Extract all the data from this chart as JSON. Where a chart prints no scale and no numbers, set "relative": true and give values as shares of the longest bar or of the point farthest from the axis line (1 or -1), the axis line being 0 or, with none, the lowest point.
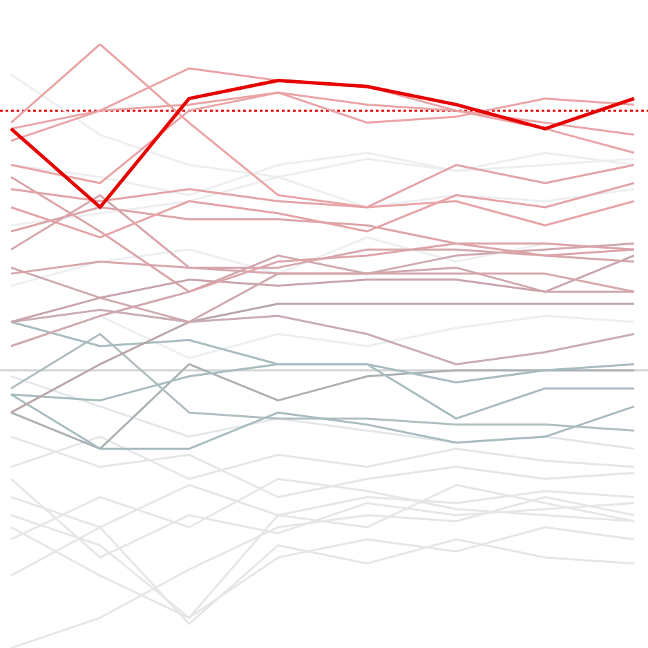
{
  "chart_data": {
    "type": "line",
    "relative": true,
    "categories": [
      null,
      null,
      null,
      null,
      null,
      null,
      null,
      null
    ],
    "marker": "none",
    "series": [
      {
        "color": "#e60000",
        "values": [
          0.86,
          0.73,
          0.91,
          0.94,
          0.93,
          0.9,
          0.86,
          0.91
        ]
      },
      {
        "color": "#eaa3a5",
        "values": [
          0.87,
          1.0,
          0.87,
          0.75,
          0.73,
          0.74,
          0.7,
          0.74
        ]
      },
      {
        "color": "#eaa3a5",
        "values": [
          0.86,
          0.89,
          0.96,
          0.94,
          0.93,
          0.89,
          0.87,
          0.85
        ]
      },
      {
        "color": "#eaa3a5",
        "values": [
          0.8,
          0.77,
          0.89,
          0.92,
          0.87,
          0.88,
          0.91,
          0.9
        ]
      },
      {
        "color": "#eaa3a5",
        "values": [
          0.84,
          0.89,
          0.9,
          0.92,
          0.9,
          0.89,
          0.86,
          0.82
        ]
      },
      {
        "color": "#e4a3a6",
        "values": [
          0.76,
          0.74,
          0.76,
          0.74,
          0.73,
          0.8,
          0.77,
          0.8
        ]
      },
      {
        "color": "#e4a3a6",
        "values": [
          0.73,
          0.68,
          0.74,
          0.72,
          0.69,
          0.75,
          0.73,
          0.77
        ]
      },
      {
        "color": "#dca4a8",
        "values": [
          0.78,
          0.69,
          0.59,
          0.64,
          0.65,
          0.67,
          0.65,
          0.66
        ]
      },
      {
        "color": "#dca4a8",
        "values": [
          0.69,
          0.73,
          0.71,
          0.71,
          0.7,
          0.67,
          0.67,
          0.66
        ]
      },
      {
        "color": "#d6a6ab",
        "values": [
          0.66,
          0.75,
          0.63,
          0.63,
          0.66,
          0.66,
          0.65,
          0.64
        ]
      },
      {
        "color": "#d6a6ab",
        "values": [
          0.62,
          0.64,
          0.63,
          0.62,
          0.62,
          0.62,
          0.62,
          0.59
        ]
      },
      {
        "color": "#cfa8ad",
        "values": [
          0.63,
          0.58,
          0.54,
          0.62,
          0.62,
          0.63,
          0.59,
          0.59
        ]
      },
      {
        "color": "#c9a4aa",
        "values": [
          0.54,
          0.58,
          0.61,
          0.6,
          0.61,
          0.61,
          0.59,
          0.65
        ]
      },
      {
        "color": "#cfa8ad",
        "values": [
          0.5,
          0.55,
          0.59,
          0.65,
          0.62,
          0.65,
          0.66,
          0.67
        ]
      },
      {
        "color": "#c8adb2",
        "values": [
          0.54,
          0.56,
          0.54,
          0.55,
          0.52,
          0.47,
          0.49,
          0.52
        ]
      },
      {
        "color": "#b9a5aa",
        "values": [
          0.39,
          0.47,
          0.54,
          0.57,
          0.57,
          0.57,
          0.57,
          0.57
        ]
      },
      {
        "color": "#a7bcbf",
        "values": [
          0.54,
          0.5,
          0.51,
          0.47,
          0.47,
          0.44,
          0.46,
          0.47
        ]
      },
      {
        "color": "#a7bcbf",
        "values": [
          0.42,
          0.41,
          0.45,
          0.47,
          0.47,
          0.38,
          0.43,
          0.43
        ]
      },
      {
        "color": "#a7bcbf",
        "values": [
          0.42,
          0.33,
          0.33,
          0.39,
          0.37,
          0.34,
          0.35,
          0.4
        ]
      },
      {
        "color": "#b0bec1",
        "values": [
          0.43,
          0.52,
          0.39,
          0.38,
          0.38,
          0.37,
          0.37,
          0.36
        ]
      },
      {
        "color": "#aab0b3",
        "values": [
          0.39,
          0.33,
          0.47,
          0.41,
          0.45,
          0.46,
          0.46,
          0.46
        ]
      },
      {
        "color": "#e4e6e8",
        "values": [
          0.45,
          0.4,
          0.35,
          0.38,
          0.36,
          0.34,
          0.35,
          0.33
        ]
      },
      {
        "color": "#e4e6e8",
        "values": [
          0.3,
          0.35,
          0.28,
          0.32,
          0.3,
          0.33,
          0.31,
          0.3
        ]
      },
      {
        "color": "#e4e6e8",
        "values": [
          0.25,
          0.2,
          0.27,
          0.22,
          0.25,
          0.24,
          0.26,
          0.25
        ]
      },
      {
        "color": "#e4e6e8",
        "values": [
          0.2,
          0.12,
          0.05,
          0.15,
          0.18,
          0.16,
          0.2,
          0.18
        ]
      },
      {
        "color": "#e4e6e8",
        "values": [
          0.0,
          0.05,
          0.13,
          0.2,
          0.22,
          0.21,
          0.25,
          0.22
        ]
      },
      {
        "color": "#e4e6e8",
        "values": [
          0.18,
          0.25,
          0.2,
          0.28,
          0.26,
          0.23,
          0.22,
          0.21
        ]
      },
      {
        "color": "#e4e6e8",
        "values": [
          0.12,
          0.2,
          0.04,
          0.17,
          0.14,
          0.18,
          0.15,
          0.14
        ]
      },
      {
        "color": "#e4e6e8",
        "values": [
          0.22,
          0.17,
          0.05,
          0.22,
          0.2,
          0.27,
          0.24,
          0.21
        ]
      },
      {
        "color": "#e4e6e8",
        "values": [
          0.35,
          0.3,
          0.32,
          0.25,
          0.28,
          0.3,
          0.28,
          0.29
        ]
      },
      {
        "color": "#eceef0",
        "values": [
          0.8,
          0.78,
          0.75,
          0.8,
          0.82,
          0.79,
          0.8,
          0.81
        ]
      },
      {
        "color": "#eceef0",
        "values": [
          0.7,
          0.72,
          0.74,
          0.78,
          0.73,
          0.75,
          0.74,
          0.76
        ]
      },
      {
        "color": "#eceef0",
        "values": [
          0.6,
          0.64,
          0.66,
          0.62,
          0.68,
          0.64,
          0.67,
          0.66
        ]
      },
      {
        "color": "#eceef0",
        "values": [
          0.5,
          0.55,
          0.48,
          0.52,
          0.5,
          0.53,
          0.55,
          0.54
        ]
      },
      {
        "color": "#eceef0",
        "values": [
          0.95,
          0.85,
          0.8,
          0.78,
          0.81,
          0.79,
          0.82,
          0.8
        ]
      },
      {
        "color": "#e4e6e8",
        "values": [
          0.28,
          0.15,
          0.22,
          0.19,
          0.24,
          0.22,
          0.23,
          0.24
        ]
      }
    ],
    "ref_lines": [
      {
        "axis": "y",
        "value": 0.89,
        "color": "#e60000",
        "line_style": "dotted"
      },
      {
        "axis": "y",
        "value": 0.46,
        "color": "#d4d4d4",
        "line_style": "solid"
      }
    ]
  }
}
